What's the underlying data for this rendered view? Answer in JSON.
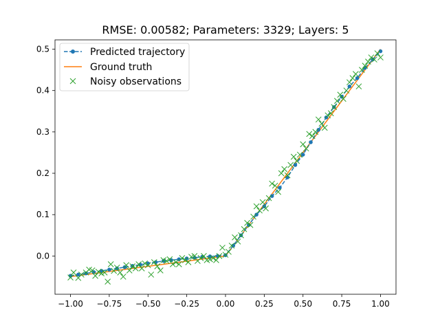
{
  "chart_data": {
    "type": "line",
    "title": "RMSE: 0.00582; Parameters: 3329; Layers: 5",
    "xlabel": "",
    "ylabel": "",
    "xlim": [
      -1.1,
      1.1
    ],
    "ylim": [
      -0.0925,
      0.5225
    ],
    "xticks": [
      -1.0,
      -0.75,
      -0.5,
      -0.25,
      0.0,
      0.25,
      0.5,
      0.75,
      1.0
    ],
    "xtick_labels": [
      "−1.00",
      "−0.75",
      "−0.50",
      "−0.25",
      "0.00",
      "0.25",
      "0.50",
      "0.75",
      "1.00"
    ],
    "yticks": [
      0.0,
      0.1,
      0.2,
      0.3,
      0.4,
      0.5
    ],
    "ytick_labels": [
      "0.0",
      "0.1",
      "0.2",
      "0.3",
      "0.4",
      "0.5"
    ],
    "grid": false,
    "legend_position": "upper-left",
    "series": [
      {
        "name": "Predicted trajectory",
        "style": "dashed-line-dot-markers",
        "color": "#1f77b4",
        "x": [
          -1.0,
          -0.95,
          -0.9,
          -0.85,
          -0.8,
          -0.75,
          -0.7,
          -0.65,
          -0.6,
          -0.55,
          -0.5,
          -0.45,
          -0.4,
          -0.35,
          -0.3,
          -0.25,
          -0.2,
          -0.15,
          -0.1,
          -0.05,
          0.0,
          0.05,
          0.1,
          0.15,
          0.2,
          0.25,
          0.3,
          0.35,
          0.4,
          0.45,
          0.5,
          0.55,
          0.6,
          0.65,
          0.7,
          0.75,
          0.8,
          0.85,
          0.9,
          0.95,
          1.0
        ],
        "y": [
          -0.048,
          -0.045,
          -0.042,
          -0.039,
          -0.036,
          -0.033,
          -0.03,
          -0.027,
          -0.024,
          -0.021,
          -0.018,
          -0.015,
          -0.012,
          -0.01,
          -0.008,
          -0.006,
          -0.004,
          -0.002,
          -0.001,
          0.0,
          0.002,
          0.025,
          0.05,
          0.075,
          0.1,
          0.12,
          0.145,
          0.165,
          0.19,
          0.22,
          0.245,
          0.275,
          0.305,
          0.335,
          0.36,
          0.385,
          0.41,
          0.43,
          0.455,
          0.475,
          0.495
        ]
      },
      {
        "name": "Ground truth",
        "style": "solid-line",
        "color": "#ff7f0e",
        "x": [
          -1.0,
          0.0,
          1.0
        ],
        "y": [
          -0.05,
          0.0,
          0.5
        ]
      },
      {
        "name": "Noisy observations",
        "style": "x-markers",
        "color": "#2ca02c",
        "x": [
          -1.0,
          -0.98,
          -0.95,
          -0.93,
          -0.9,
          -0.88,
          -0.86,
          -0.84,
          -0.82,
          -0.8,
          -0.78,
          -0.76,
          -0.74,
          -0.72,
          -0.7,
          -0.68,
          -0.66,
          -0.64,
          -0.62,
          -0.6,
          -0.58,
          -0.56,
          -0.54,
          -0.52,
          -0.5,
          -0.48,
          -0.46,
          -0.44,
          -0.42,
          -0.4,
          -0.38,
          -0.36,
          -0.34,
          -0.32,
          -0.3,
          -0.28,
          -0.26,
          -0.24,
          -0.22,
          -0.2,
          -0.18,
          -0.16,
          -0.14,
          -0.12,
          -0.1,
          -0.08,
          -0.06,
          -0.04,
          -0.02,
          0.0,
          0.02,
          0.04,
          0.06,
          0.08,
          0.1,
          0.12,
          0.14,
          0.16,
          0.18,
          0.2,
          0.22,
          0.24,
          0.26,
          0.28,
          0.3,
          0.32,
          0.34,
          0.36,
          0.38,
          0.4,
          0.42,
          0.44,
          0.46,
          0.48,
          0.5,
          0.52,
          0.54,
          0.56,
          0.58,
          0.6,
          0.62,
          0.64,
          0.66,
          0.68,
          0.7,
          0.72,
          0.74,
          0.76,
          0.78,
          0.8,
          0.82,
          0.84,
          0.86,
          0.88,
          0.9,
          0.92,
          0.94,
          0.96,
          0.98,
          1.0
        ],
        "y": [
          -0.052,
          -0.04,
          -0.053,
          -0.045,
          -0.04,
          -0.033,
          -0.035,
          -0.048,
          -0.038,
          -0.042,
          -0.04,
          -0.062,
          -0.02,
          -0.036,
          -0.028,
          -0.04,
          -0.05,
          -0.022,
          -0.035,
          -0.025,
          -0.03,
          -0.02,
          -0.03,
          -0.018,
          -0.022,
          -0.045,
          -0.015,
          -0.025,
          -0.035,
          -0.01,
          -0.012,
          -0.008,
          -0.02,
          -0.015,
          -0.02,
          -0.005,
          -0.01,
          -0.015,
          -0.002,
          0.0,
          -0.012,
          -0.005,
          0.0,
          -0.01,
          -0.008,
          -0.005,
          -0.01,
          0.0,
          0.02,
          0.003,
          0.01,
          0.025,
          0.045,
          0.035,
          0.05,
          0.065,
          0.08,
          0.075,
          0.095,
          0.12,
          0.11,
          0.13,
          0.115,
          0.14,
          0.175,
          0.17,
          0.155,
          0.2,
          0.21,
          0.195,
          0.22,
          0.24,
          0.23,
          0.245,
          0.27,
          0.26,
          0.295,
          0.29,
          0.3,
          0.33,
          0.32,
          0.31,
          0.34,
          0.345,
          0.36,
          0.375,
          0.39,
          0.38,
          0.4,
          0.42,
          0.43,
          0.44,
          0.41,
          0.45,
          0.46,
          0.47,
          0.48,
          0.475,
          0.49,
          0.48
        ]
      }
    ]
  }
}
